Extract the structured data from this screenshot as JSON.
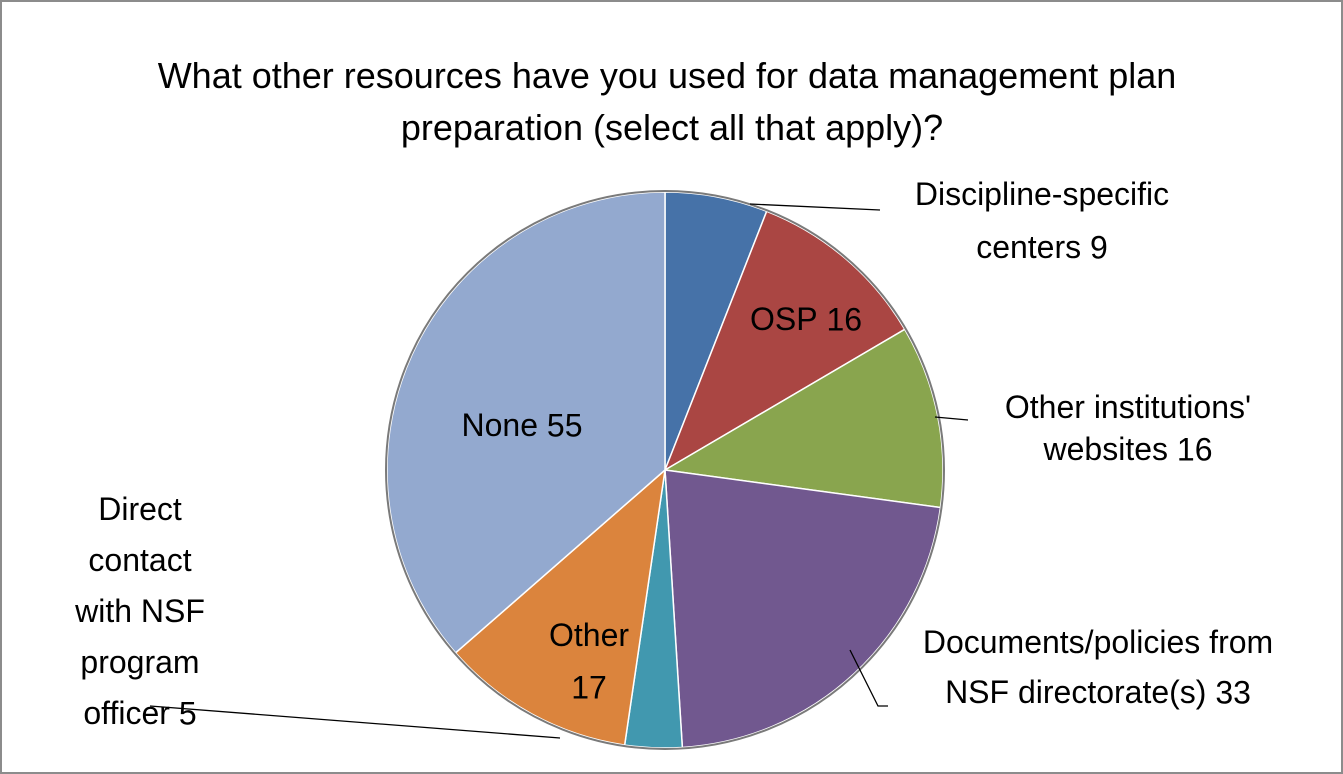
{
  "chart_data": {
    "type": "pie",
    "title": "What other resources have you used for data management plan preparation (select all that apply)?",
    "categories": [
      "Discipline-specific centers",
      "OSP",
      "Other institutions' websites",
      "Documents/policies from NSF directorate(s)",
      "Direct contact with NSF program officer",
      "Other",
      "None"
    ],
    "values": [
      9,
      16,
      16,
      33,
      5,
      17,
      55
    ],
    "colors": [
      "#4672a8",
      "#aa4643",
      "#89a54e",
      "#71588f",
      "#4198af",
      "#db843d",
      "#93a9cf"
    ]
  }
}
